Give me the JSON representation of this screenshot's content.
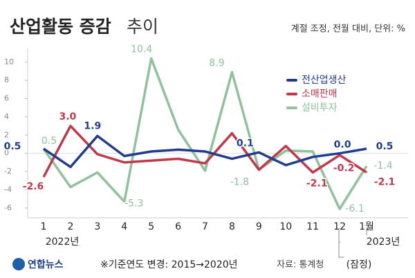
{
  "chart_data": {
    "type": "line",
    "title": "산업활동 증감",
    "title_light": "추이",
    "subtitle": "계절 조정, 전월 대비, 단위: %",
    "categories": [
      "1",
      "2",
      "3",
      "4",
      "5",
      "6",
      "7",
      "8",
      "9",
      "10",
      "11",
      "12",
      "1월"
    ],
    "year_labels": [
      "2022년",
      "2023년"
    ],
    "provisional_note": "(잠정)",
    "series": [
      {
        "name": "전산업생산",
        "color": "#1f3d8c",
        "values": [
          0.5,
          -1.5,
          1.9,
          -0.3,
          0.2,
          0.4,
          0.2,
          -0.6,
          0.1,
          -1.3,
          -0.4,
          0.0,
          0.5
        ],
        "value_labels": [
          "0.5",
          null,
          "1.9",
          null,
          null,
          null,
          null,
          null,
          "0.1",
          null,
          null,
          "0.0",
          "0.5"
        ]
      },
      {
        "name": "소매판매",
        "color": "#c0394b",
        "values": [
          -2.6,
          3.0,
          -0.1,
          -1.0,
          -0.8,
          -0.6,
          -1.1,
          2.2,
          -1.8,
          0.8,
          -2.1,
          -0.2,
          -2.1
        ],
        "value_labels": [
          "-2.6",
          "3.0",
          null,
          null,
          null,
          null,
          null,
          null,
          null,
          null,
          "-2.1",
          "-0.2",
          "-2.1"
        ]
      },
      {
        "name": "설비투자",
        "color": "#8fc19b",
        "values": [
          0.5,
          -3.7,
          -2.1,
          -5.3,
          10.4,
          2.6,
          -1.9,
          8.9,
          -1.8,
          0.3,
          0.2,
          -6.1,
          -1.4
        ],
        "value_labels": [
          "0.5",
          null,
          null,
          "-5.3",
          "10.4",
          null,
          null,
          "8.9",
          "-1.8",
          null,
          null,
          "-6.1",
          "-1.4"
        ]
      }
    ],
    "ylim": [
      -7,
      11.5
    ],
    "yticks": [
      -6,
      -4,
      -2,
      0,
      2,
      4,
      6,
      8,
      10
    ],
    "grid": false,
    "legend": "upper right",
    "footnote": "※기준연도 변경: 2015→2020년",
    "source": "자료: 통계청",
    "logo": "연합뉴스"
  }
}
